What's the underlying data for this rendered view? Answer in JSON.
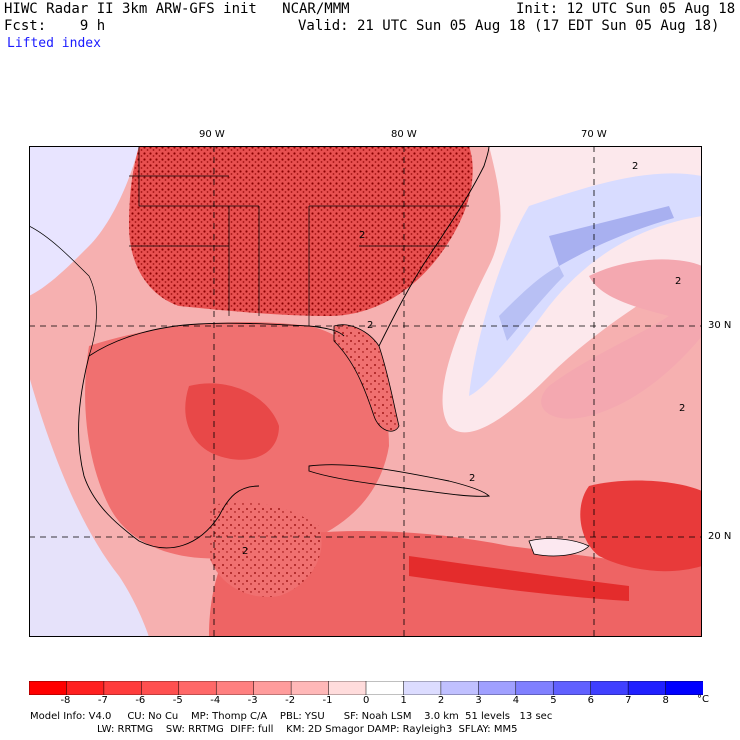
{
  "header": {
    "model_line": "HIWC Radar II 3km ARW-GFS init   NCAR/MMM",
    "init_line": "Init: 12 UTC Sun 05 Aug 18",
    "fcst_line": "Fcst:    9 h",
    "valid_line": "Valid: 21 UTC Sun 05 Aug 18 (17 EDT Sun 05 Aug 18)",
    "field_name": "Lifted index"
  },
  "map": {
    "lon_labels": [
      "90 W",
      "80 W",
      "70 W"
    ],
    "lat_labels": [
      "30 N",
      "20 N"
    ],
    "contour_labels": [
      "2",
      "2",
      "2",
      "2",
      "2",
      "2",
      "2"
    ],
    "colors": {
      "strong_negative": "#e83030",
      "negative": "#f06060",
      "mild_negative": "#f8a0a0",
      "neutral": "#fce0e0",
      "positive": "#d8d8ff",
      "strong_positive": "#a0a0f0",
      "contour": "#8b0000",
      "border": "#000000"
    }
  },
  "colorbar": {
    "tick_labels": [
      "-8",
      "-7",
      "-6",
      "-5",
      "-4",
      "-3",
      "-2",
      "-1",
      "0",
      "1",
      "2",
      "3",
      "4",
      "5",
      "6",
      "7",
      "8"
    ],
    "unit": "°C",
    "colors": [
      "#ff0000",
      "#ff2020",
      "#ff3c3c",
      "#ff5050",
      "#ff6868",
      "#ff8080",
      "#ff9c9c",
      "#ffb8b8",
      "#ffdcdc",
      "#ffffff",
      "#dcdcff",
      "#c0c0ff",
      "#a0a0ff",
      "#8080ff",
      "#6060ff",
      "#4040ff",
      "#2020ff",
      "#0000ff"
    ]
  },
  "footer": {
    "line1": "Model Info: V4.0     CU: No Cu    MP: Thomp C/A    PBL: YSU      SF: Noah LSM    3.0 km  51 levels   13 sec",
    "line2": "LW: RRTMG    SW: RRTMG  DIFF: full    KM: 2D Smagor DAMP: Rayleigh3  SFLAY: MM5"
  }
}
